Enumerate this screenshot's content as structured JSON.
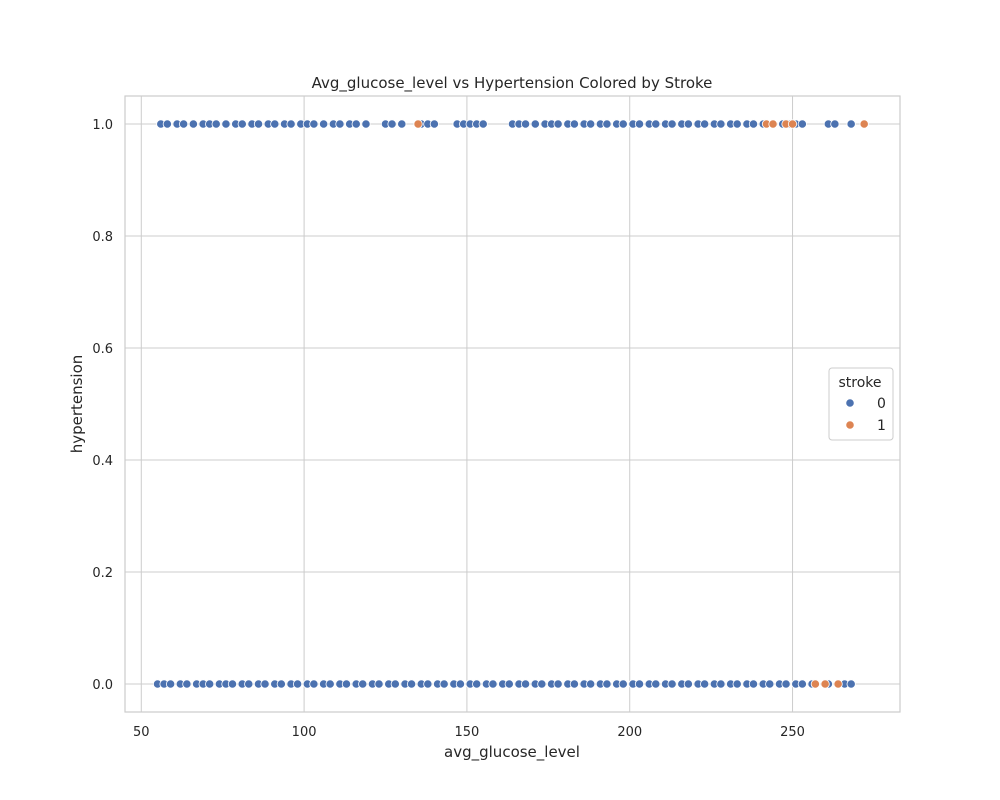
{
  "chart_data": {
    "type": "scatter",
    "title": "Avg_glucose_level vs Hypertension Colored by Stroke",
    "xlabel": "avg_glucose_level",
    "ylabel": "hypertension",
    "xlim": [
      45,
      283
    ],
    "ylim": [
      -0.05,
      1.05
    ],
    "xticks": [
      50,
      100,
      150,
      200,
      250
    ],
    "xtick_labels": [
      "50",
      "100",
      "150",
      "200",
      "250"
    ],
    "yticks": [
      0.0,
      0.2,
      0.4,
      0.6,
      0.8,
      1.0
    ],
    "ytick_labels": [
      "0.0",
      "0.2",
      "0.4",
      "0.6",
      "0.8",
      "1.0"
    ],
    "grid": true,
    "legend": {
      "title": "stroke",
      "placement": "center-right",
      "entries": [
        "0",
        "1"
      ]
    },
    "series": [
      {
        "name": "0",
        "color": "#4c72b0",
        "points": [
          [
            56,
            1
          ],
          [
            58,
            1
          ],
          [
            61,
            1
          ],
          [
            63,
            1
          ],
          [
            66,
            1
          ],
          [
            69,
            1
          ],
          [
            71,
            1
          ],
          [
            73,
            1
          ],
          [
            76,
            1
          ],
          [
            79,
            1
          ],
          [
            81,
            1
          ],
          [
            84,
            1
          ],
          [
            86,
            1
          ],
          [
            89,
            1
          ],
          [
            91,
            1
          ],
          [
            94,
            1
          ],
          [
            96,
            1
          ],
          [
            99,
            1
          ],
          [
            101,
            1
          ],
          [
            103,
            1
          ],
          [
            106,
            1
          ],
          [
            109,
            1
          ],
          [
            111,
            1
          ],
          [
            114,
            1
          ],
          [
            116,
            1
          ],
          [
            119,
            1
          ],
          [
            125,
            1
          ],
          [
            127,
            1
          ],
          [
            130,
            1
          ],
          [
            136,
            1
          ],
          [
            138,
            1
          ],
          [
            140,
            1
          ],
          [
            147,
            1
          ],
          [
            149,
            1
          ],
          [
            151,
            1
          ],
          [
            153,
            1
          ],
          [
            155,
            1
          ],
          [
            164,
            1
          ],
          [
            166,
            1
          ],
          [
            168,
            1
          ],
          [
            171,
            1
          ],
          [
            174,
            1
          ],
          [
            176,
            1
          ],
          [
            178,
            1
          ],
          [
            181,
            1
          ],
          [
            183,
            1
          ],
          [
            186,
            1
          ],
          [
            188,
            1
          ],
          [
            191,
            1
          ],
          [
            193,
            1
          ],
          [
            196,
            1
          ],
          [
            198,
            1
          ],
          [
            201,
            1
          ],
          [
            203,
            1
          ],
          [
            206,
            1
          ],
          [
            208,
            1
          ],
          [
            211,
            1
          ],
          [
            213,
            1
          ],
          [
            216,
            1
          ],
          [
            218,
            1
          ],
          [
            221,
            1
          ],
          [
            223,
            1
          ],
          [
            226,
            1
          ],
          [
            228,
            1
          ],
          [
            231,
            1
          ],
          [
            233,
            1
          ],
          [
            236,
            1
          ],
          [
            238,
            1
          ],
          [
            241,
            1
          ],
          [
            247,
            1
          ],
          [
            249,
            1
          ],
          [
            251,
            1
          ],
          [
            253,
            1
          ],
          [
            261,
            1
          ],
          [
            263,
            1
          ],
          [
            268,
            1
          ],
          [
            55,
            0
          ],
          [
            57,
            0
          ],
          [
            59,
            0
          ],
          [
            62,
            0
          ],
          [
            64,
            0
          ],
          [
            67,
            0
          ],
          [
            69,
            0
          ],
          [
            71,
            0
          ],
          [
            74,
            0
          ],
          [
            76,
            0
          ],
          [
            78,
            0
          ],
          [
            81,
            0
          ],
          [
            83,
            0
          ],
          [
            86,
            0
          ],
          [
            88,
            0
          ],
          [
            91,
            0
          ],
          [
            93,
            0
          ],
          [
            96,
            0
          ],
          [
            98,
            0
          ],
          [
            101,
            0
          ],
          [
            103,
            0
          ],
          [
            106,
            0
          ],
          [
            108,
            0
          ],
          [
            111,
            0
          ],
          [
            113,
            0
          ],
          [
            116,
            0
          ],
          [
            118,
            0
          ],
          [
            121,
            0
          ],
          [
            123,
            0
          ],
          [
            126,
            0
          ],
          [
            128,
            0
          ],
          [
            131,
            0
          ],
          [
            133,
            0
          ],
          [
            136,
            0
          ],
          [
            138,
            0
          ],
          [
            141,
            0
          ],
          [
            143,
            0
          ],
          [
            146,
            0
          ],
          [
            148,
            0
          ],
          [
            151,
            0
          ],
          [
            153,
            0
          ],
          [
            156,
            0
          ],
          [
            158,
            0
          ],
          [
            161,
            0
          ],
          [
            163,
            0
          ],
          [
            166,
            0
          ],
          [
            168,
            0
          ],
          [
            171,
            0
          ],
          [
            173,
            0
          ],
          [
            176,
            0
          ],
          [
            178,
            0
          ],
          [
            181,
            0
          ],
          [
            183,
            0
          ],
          [
            186,
            0
          ],
          [
            188,
            0
          ],
          [
            191,
            0
          ],
          [
            193,
            0
          ],
          [
            196,
            0
          ],
          [
            198,
            0
          ],
          [
            201,
            0
          ],
          [
            203,
            0
          ],
          [
            206,
            0
          ],
          [
            208,
            0
          ],
          [
            211,
            0
          ],
          [
            213,
            0
          ],
          [
            216,
            0
          ],
          [
            218,
            0
          ],
          [
            221,
            0
          ],
          [
            223,
            0
          ],
          [
            226,
            0
          ],
          [
            228,
            0
          ],
          [
            231,
            0
          ],
          [
            233,
            0
          ],
          [
            236,
            0
          ],
          [
            238,
            0
          ],
          [
            241,
            0
          ],
          [
            243,
            0
          ],
          [
            246,
            0
          ],
          [
            248,
            0
          ],
          [
            251,
            0
          ],
          [
            253,
            0
          ],
          [
            256,
            0
          ],
          [
            261,
            0
          ],
          [
            266,
            0
          ],
          [
            268,
            0
          ]
        ]
      },
      {
        "name": "1",
        "color": "#dd8452",
        "points": [
          [
            135,
            1
          ],
          [
            242,
            1
          ],
          [
            244,
            1
          ],
          [
            248,
            1
          ],
          [
            250,
            1
          ],
          [
            272,
            1
          ],
          [
            257,
            0
          ],
          [
            260,
            0
          ],
          [
            264,
            0
          ]
        ]
      }
    ]
  }
}
